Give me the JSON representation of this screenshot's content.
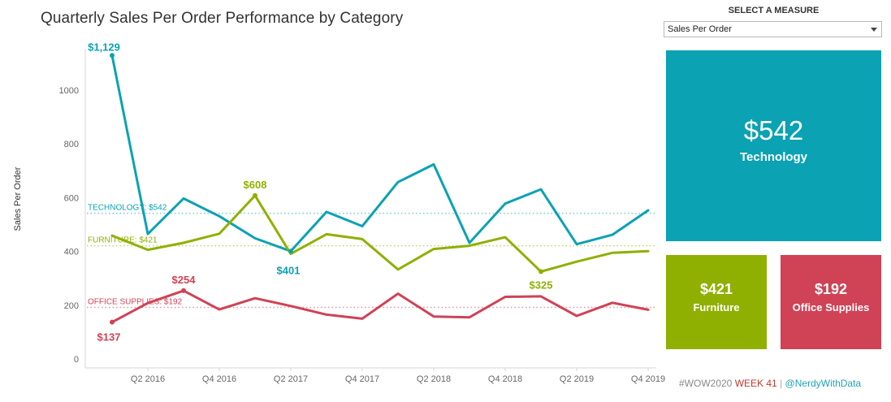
{
  "title": "Quarterly Sales Per Order Performance by Category",
  "colors": {
    "technology": "#0ba2b3",
    "furniture": "#8fb000",
    "office": "#d04255"
  },
  "measure": {
    "heading": "SELECT A MEASURE",
    "selected": "Sales Per Order"
  },
  "kpis": {
    "technology": {
      "value": "$542",
      "label": "Technology"
    },
    "furniture": {
      "value": "$421",
      "label": "Furniture"
    },
    "office": {
      "value": "$192",
      "label": "Office Supplies"
    }
  },
  "footer": {
    "tag": "#WOW2020",
    "week": "WEEK 41",
    "sep": "|",
    "handle": "@NerdyWithData"
  },
  "chart_data": {
    "type": "line",
    "title": "Quarterly Sales Per Order Performance by Category",
    "ylabel": "Sales Per Order",
    "xlabel": "",
    "ylim": [
      0,
      1150
    ],
    "yticks": [
      0,
      200,
      400,
      600,
      800,
      1000
    ],
    "x": [
      "Q1 2016",
      "Q2 2016",
      "Q3 2016",
      "Q4 2016",
      "Q1 2017",
      "Q2 2017",
      "Q3 2017",
      "Q4 2017",
      "Q1 2018",
      "Q2 2018",
      "Q3 2018",
      "Q4 2018",
      "Q1 2019",
      "Q2 2019",
      "Q3 2019",
      "Q4 2019"
    ],
    "xticks": [
      "Q2 2016",
      "Q4 2016",
      "Q2 2017",
      "Q4 2017",
      "Q2 2018",
      "Q4 2018",
      "Q2 2019",
      "Q4 2019"
    ],
    "series": [
      {
        "key": "technology",
        "values": [
          1129,
          465,
          597,
          531,
          449,
          401,
          547,
          494,
          658,
          724,
          432,
          578,
          631,
          427,
          462,
          553
        ],
        "reference": {
          "label": "TECHNOLOGY: $542",
          "value": 542
        }
      },
      {
        "key": "furniture",
        "values": [
          459,
          406,
          432,
          466,
          608,
          391,
          464,
          446,
          333,
          409,
          421,
          453,
          325,
          362,
          395,
          401
        ],
        "reference": {
          "label": "FURNITURE: $421",
          "value": 421
        }
      },
      {
        "key": "office",
        "values": [
          137,
          208,
          254,
          184,
          226,
          197,
          165,
          150,
          243,
          158,
          155,
          231,
          233,
          160,
          209,
          183
        ],
        "reference": {
          "label": "OFFICE SUPPLIES: $192",
          "value": 192
        }
      }
    ],
    "annotations": [
      {
        "series": "technology",
        "index": 0,
        "label": "$1,129",
        "pos": "above"
      },
      {
        "series": "technology",
        "index": 5,
        "label": "$401",
        "pos": "below"
      },
      {
        "series": "furniture",
        "index": 4,
        "label": "$608",
        "pos": "above"
      },
      {
        "series": "furniture",
        "index": 12,
        "label": "$325",
        "pos": "below"
      },
      {
        "series": "office",
        "index": 2,
        "label": "$254",
        "pos": "above"
      },
      {
        "series": "office",
        "index": 0,
        "label": "$137",
        "pos": "below"
      }
    ],
    "grid": false
  }
}
